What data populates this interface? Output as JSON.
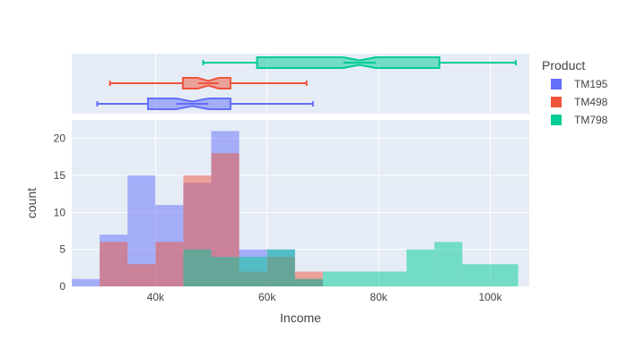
{
  "chart_data": {
    "type": "bar",
    "subtype": "overlaid-histogram-with-box-marginals",
    "xlabel": "Income",
    "ylabel": "count",
    "xlim": [
      25000,
      107000
    ],
    "ylim": [
      0,
      22.5
    ],
    "x_ticks": [
      40000,
      60000,
      80000,
      100000
    ],
    "x_tick_labels": [
      "40k",
      "60k",
      "80k",
      "100k"
    ],
    "y_ticks": [
      0,
      5,
      10,
      15,
      20
    ],
    "y_tick_labels": [
      "0",
      "5",
      "10",
      "15",
      "20"
    ],
    "grid": true,
    "bin_width": 5000,
    "legend": {
      "title": "Product",
      "placement": "right"
    },
    "series": [
      {
        "name": "TM195",
        "color": "#636efa",
        "bins": [
          {
            "x0": 25000,
            "count": 1
          },
          {
            "x0": 30000,
            "count": 7
          },
          {
            "x0": 35000,
            "count": 15
          },
          {
            "x0": 40000,
            "count": 11
          },
          {
            "x0": 45000,
            "count": 14
          },
          {
            "x0": 50000,
            "count": 21
          },
          {
            "x0": 55000,
            "count": 5
          },
          {
            "x0": 60000,
            "count": 5
          },
          {
            "x0": 65000,
            "count": 1
          }
        ],
        "box": {
          "min": 29562,
          "q1": 38658,
          "median": 46617,
          "q3": 53439,
          "max": 68220
        }
      },
      {
        "name": "TM498",
        "color": "#ef553b",
        "bins": [
          {
            "x0": 30000,
            "count": 6
          },
          {
            "x0": 35000,
            "count": 3
          },
          {
            "x0": 40000,
            "count": 6
          },
          {
            "x0": 45000,
            "count": 15
          },
          {
            "x0": 50000,
            "count": 18
          },
          {
            "x0": 55000,
            "count": 2
          },
          {
            "x0": 60000,
            "count": 4
          },
          {
            "x0": 65000,
            "count": 2
          }
        ],
        "box": {
          "min": 31836,
          "q1": 44911,
          "median": 49459,
          "q3": 53439,
          "max": 67083
        }
      },
      {
        "name": "TM798",
        "color": "#00cc96",
        "bins": [
          {
            "x0": 45000,
            "count": 5
          },
          {
            "x0": 50000,
            "count": 4
          },
          {
            "x0": 55000,
            "count": 4
          },
          {
            "x0": 60000,
            "count": 5
          },
          {
            "x0": 65000,
            "count": 1
          },
          {
            "x0": 70000,
            "count": 2
          },
          {
            "x0": 75000,
            "count": 2
          },
          {
            "x0": 80000,
            "count": 2
          },
          {
            "x0": 85000,
            "count": 5
          },
          {
            "x0": 90000,
            "count": 6
          },
          {
            "x0": 95000,
            "count": 3
          },
          {
            "x0": 100000,
            "count": 3
          }
        ],
        "box": {
          "min": 48556,
          "q1": 58204,
          "median": 76568,
          "q3": 90886,
          "max": 104581
        }
      }
    ]
  }
}
